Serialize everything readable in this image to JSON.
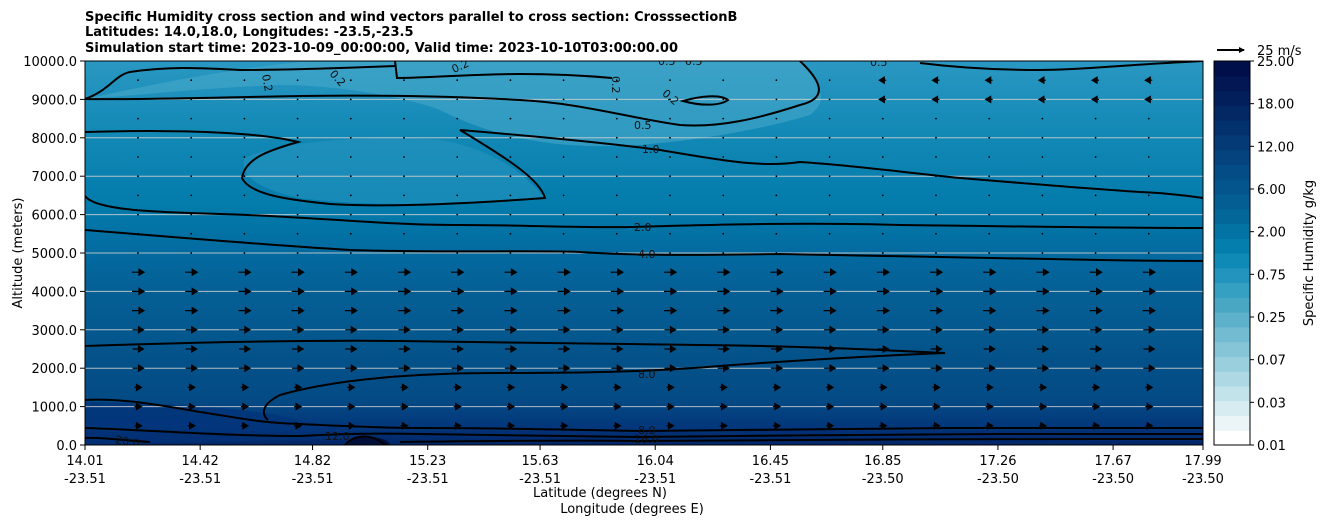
{
  "chart_data": {
    "type": "heatmap",
    "title_lines": [
      "Specific Humidity cross section and wind vectors parallel to cross section: CrosssectionB",
      "Latitudes: 14.0,18.0, Longitudes: -23.5,-23.5",
      "Simulation start time: 2023-10-09_00:00:00, Valid time: 2023-10-10T03:00:00.00"
    ],
    "xlabel_lat": "Latitude (degrees N)",
    "xlabel_lon": "Longitude (degrees E)",
    "ylabel": "Altitude (meters)",
    "x_ticks": [
      {
        "lat": "14.01",
        "lon": "-23.51"
      },
      {
        "lat": "14.42",
        "lon": "-23.51"
      },
      {
        "lat": "14.82",
        "lon": "-23.51"
      },
      {
        "lat": "15.23",
        "lon": "-23.51"
      },
      {
        "lat": "15.63",
        "lon": "-23.51"
      },
      {
        "lat": "16.04",
        "lon": "-23.51"
      },
      {
        "lat": "16.45",
        "lon": "-23.51"
      },
      {
        "lat": "16.85",
        "lon": "-23.50"
      },
      {
        "lat": "17.26",
        "lon": "-23.50"
      },
      {
        "lat": "17.67",
        "lon": "-23.50"
      },
      {
        "lat": "17.99",
        "lon": "-23.50"
      }
    ],
    "x_range": [
      14.01,
      17.99
    ],
    "ylim": [
      0,
      10000
    ],
    "y_ticks": [
      "0.0",
      "1000.0",
      "2000.0",
      "3000.0",
      "4000.0",
      "5000.0",
      "6000.0",
      "7000.0",
      "8000.0",
      "9000.0",
      "10000.0"
    ],
    "grid": "horizontal",
    "colorbar": {
      "label": "Specific Humidity g/kg",
      "tick_labels": [
        "0.01",
        "0.03",
        "0.07",
        "0.25",
        "0.75",
        "2.00",
        "6.00",
        "12.00",
        "18.00",
        "25.00"
      ],
      "colors": [
        "#ffffff",
        "#ebf5f7",
        "#d7ecf1",
        "#c3e3eb",
        "#aed9e4",
        "#9acfde",
        "#86c5d8",
        "#72bbd1",
        "#5eb1cb",
        "#4aa7c4",
        "#36a0c3",
        "#2294bd",
        "#0f8ab6",
        "#047fad",
        "#0373a3",
        "#03679a",
        "#045e94",
        "#04558d",
        "#044c86",
        "#04437e",
        "#043a76",
        "#03316d",
        "#032864",
        "#021f5c",
        "#021753",
        "#000f4a"
      ]
    },
    "wind_key": {
      "label": "25 m/s",
      "speed": 25
    },
    "contour_labels": [
      "0.2",
      "0.2",
      "0.2",
      "0.2",
      "0.2",
      "0.5",
      "0.5",
      "0.5",
      "0.5",
      "1.0",
      "2.0",
      "4.0",
      "8.0",
      "8.0",
      "16.0",
      "12.0",
      "20.0"
    ]
  }
}
